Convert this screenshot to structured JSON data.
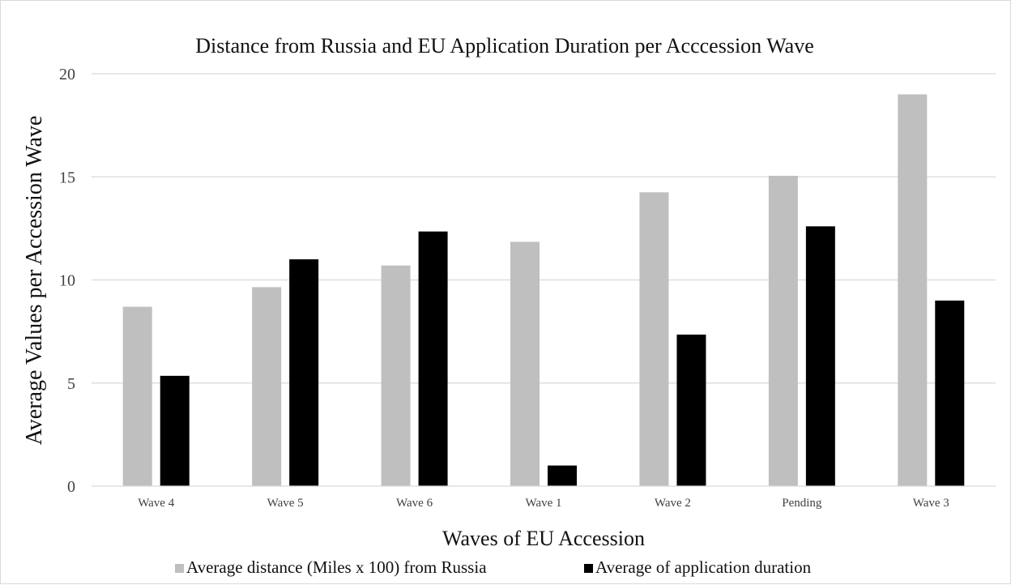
{
  "chart_data": {
    "type": "bar",
    "title": "Distance from Russia and EU Application Duration per Acccession Wave",
    "xlabel": "Waves of EU Accession",
    "ylabel": "Average Values  per  Accession Wave",
    "categories": [
      "Wave 4",
      "Wave 5",
      "Wave 6",
      "Wave 1",
      "Wave 2",
      "Pending",
      "Wave 3"
    ],
    "series": [
      {
        "name": "Average distance (Miles x 100) from Russia",
        "color": "#bfbfbf",
        "values": [
          8.7,
          9.65,
          10.7,
          11.85,
          14.25,
          15.05,
          19.0
        ]
      },
      {
        "name": "Average of application duration",
        "color": "#000000",
        "values": [
          5.35,
          11.0,
          12.35,
          1.0,
          7.35,
          12.6,
          9.0
        ]
      }
    ],
    "ylim": [
      0,
      20
    ],
    "yticks": [
      "0",
      "5",
      "10",
      "15",
      "20"
    ],
    "grid": true,
    "legend_position": "bottom"
  }
}
